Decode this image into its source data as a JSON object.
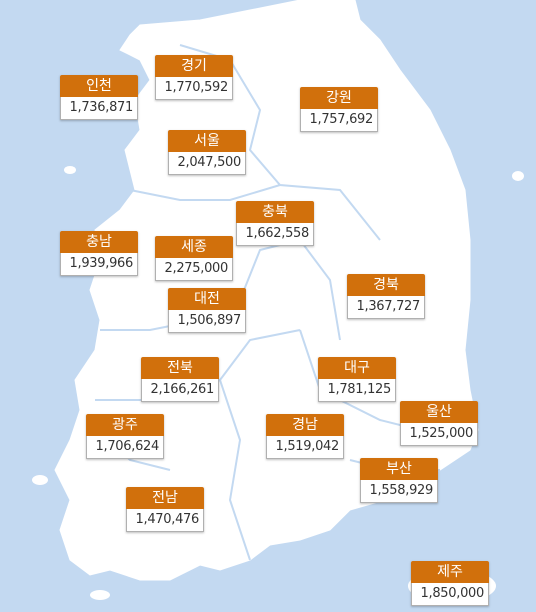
{
  "regions": [
    {
      "name": "경기",
      "value": "1,770,592"
    },
    {
      "name": "인천",
      "value": "1,736,871"
    },
    {
      "name": "강원",
      "value": "1,757,692"
    },
    {
      "name": "서울",
      "value": "2,047,500"
    },
    {
      "name": "충북",
      "value": "1,662,558"
    },
    {
      "name": "충남",
      "value": "1,939,966"
    },
    {
      "name": "세종",
      "value": "2,275,000"
    },
    {
      "name": "경북",
      "value": "1,367,727"
    },
    {
      "name": "대전",
      "value": "1,506,897"
    },
    {
      "name": "전북",
      "value": "2,166,261"
    },
    {
      "name": "대구",
      "value": "1,781,125"
    },
    {
      "name": "울산",
      "value": "1,525,000"
    },
    {
      "name": "광주",
      "value": "1,706,624"
    },
    {
      "name": "경남",
      "value": "1,519,042"
    },
    {
      "name": "부산",
      "value": "1,558,929"
    },
    {
      "name": "전남",
      "value": "1,470,476"
    },
    {
      "name": "제주",
      "value": "1,850,000"
    }
  ]
}
